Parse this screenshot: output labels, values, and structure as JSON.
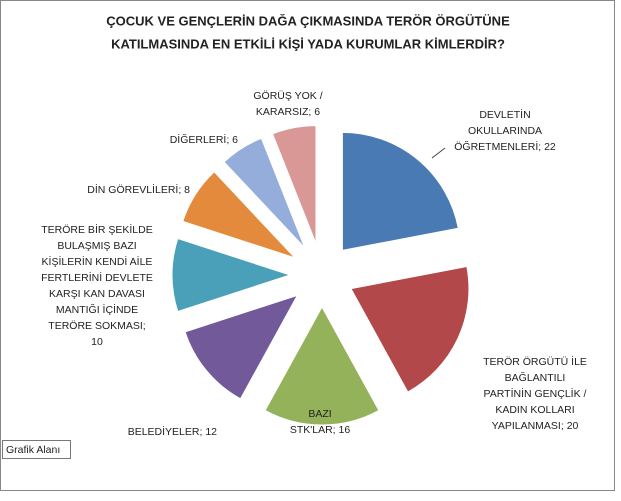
{
  "chart_data": {
    "type": "pie",
    "title": [
      "ÇOCUK VE GENÇLERİN DAĞA ÇIKMASINDA TERÖR ÖRGÜTÜNE",
      "KATILMASINDA EN ETKİLİ KİŞİ YADA KURUMLAR KİMLERDİR?"
    ],
    "labels": [
      [
        "DEVLETİN",
        "OKULLARINDA",
        "ÖĞRETMENLERİ; 22"
      ],
      [
        "TERÖR ÖRGÜTÜ İLE",
        "BAĞLANTILI",
        "PARTİNİN GENÇLİK /",
        "KADIN KOLLARI",
        "YAPILANMASI; 20"
      ],
      [
        "BAZI",
        "STK'LAR; 16"
      ],
      [
        "BELEDİYELER; 12"
      ],
      [
        "TERÖRE BİR ŞEKİLDE",
        "BULAŞMIŞ BAZI",
        "KİŞİLERİN KENDİ AİLE",
        "FERTLERİNİ DEVLETE",
        "KARŞI KAN DAVASI",
        "MANTIĞI İÇİNDE",
        "TERÖRE SOKMASI;",
        "10"
      ],
      [
        "DİN GÖREVLİLERİ; 8"
      ],
      [
        "DİĞERLERİ; 6"
      ],
      [
        "GÖRÜŞ YOK /",
        "KARARSIZ; 6"
      ]
    ],
    "values": [
      22,
      20,
      16,
      12,
      10,
      8,
      6,
      6
    ],
    "colors": [
      "#4a7ab4",
      "#b2484a",
      "#93b25a",
      "#72599a",
      "#4aa0b8",
      "#e38a3c",
      "#94adda",
      "#d99795"
    ],
    "tooltip": "Grafik Alanı"
  }
}
